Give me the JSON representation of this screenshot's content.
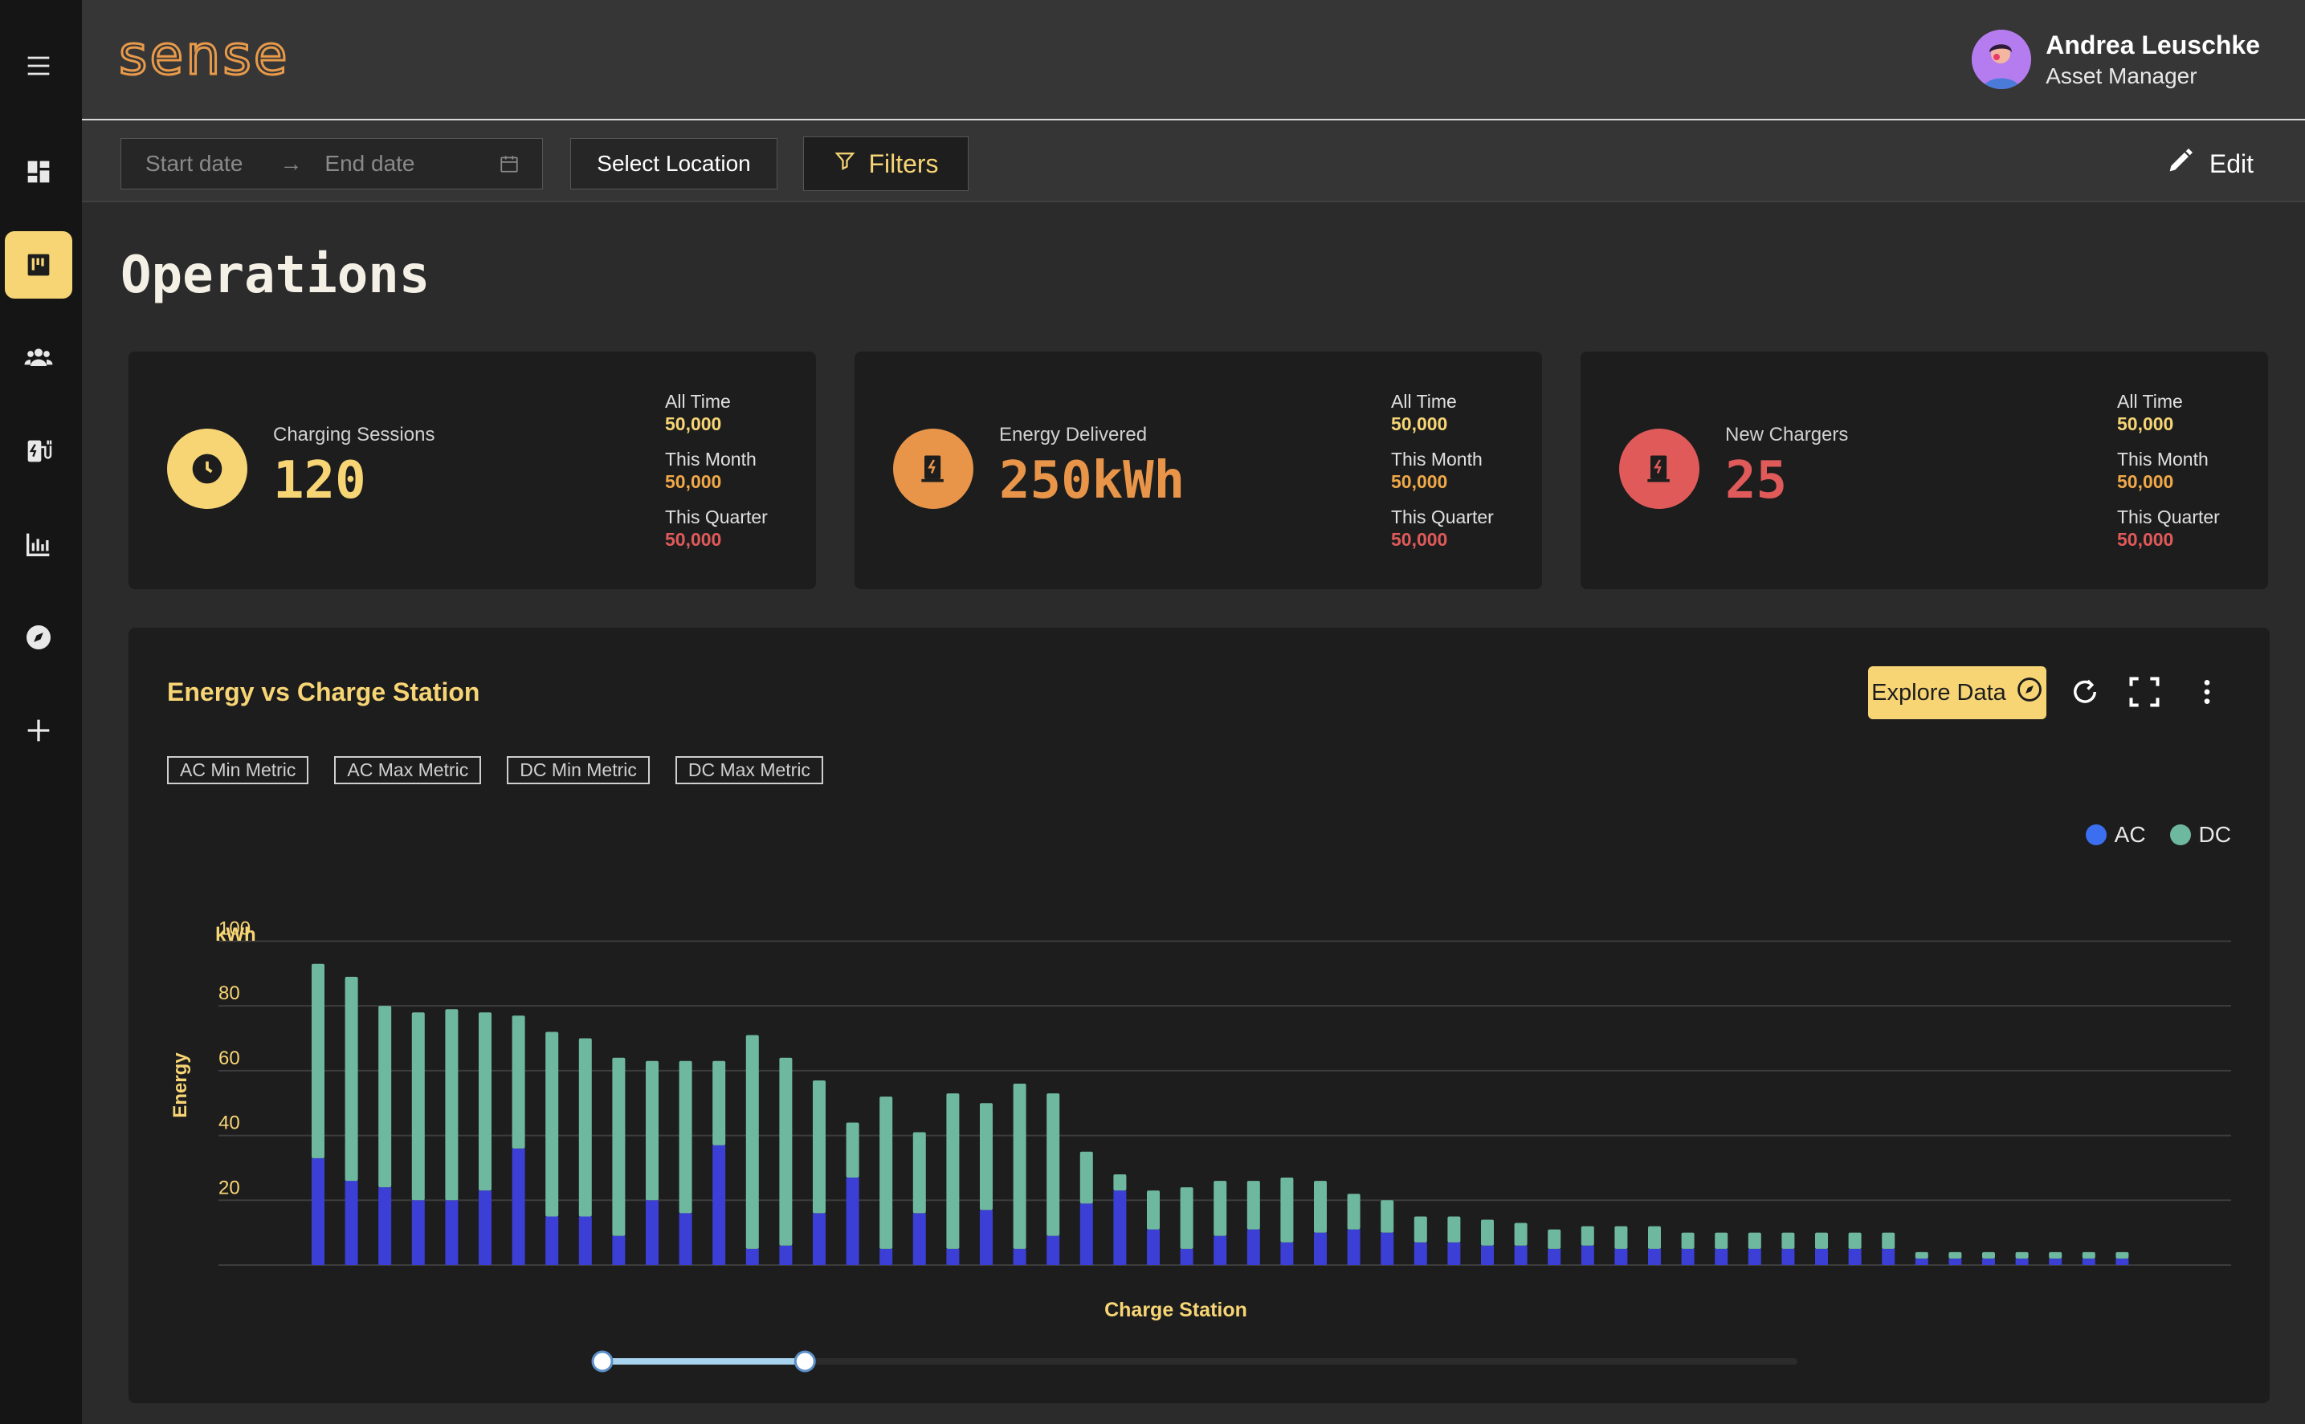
{
  "app": {
    "logo": "sense"
  },
  "user": {
    "name": "Andrea Leuschke",
    "role": "Asset Manager"
  },
  "toolbar": {
    "start_placeholder": "Start date",
    "arrow": "→",
    "end_placeholder": "End date",
    "location_label": "Select Location",
    "filters_label": "Filters",
    "edit_label": "Edit"
  },
  "page": {
    "title": "Operations"
  },
  "cards": [
    {
      "label": "Charging Sessions",
      "value": "120",
      "accent": "#f7d575",
      "stats": [
        {
          "label": "All Time",
          "value": "50,000",
          "color": "#f7d575"
        },
        {
          "label": "This Month",
          "value": "50,000",
          "color": "#f0a848"
        },
        {
          "label": "This Quarter",
          "value": "50,000",
          "color": "#e05a5a"
        }
      ]
    },
    {
      "label": "Energy Delivered",
      "value": "250kWh",
      "accent": "#e8954a",
      "stats": [
        {
          "label": "All Time",
          "value": "50,000",
          "color": "#f7d575"
        },
        {
          "label": "This Month",
          "value": "50,000",
          "color": "#f0a848"
        },
        {
          "label": "This Quarter",
          "value": "50,000",
          "color": "#e05a5a"
        }
      ]
    },
    {
      "label": "New Chargers",
      "value": "25",
      "accent": "#e05a5a",
      "stats": [
        {
          "label": "All Time",
          "value": "50,000",
          "color": "#f7d575"
        },
        {
          "label": "This Month",
          "value": "50,000",
          "color": "#f0a848"
        },
        {
          "label": "This Quarter",
          "value": "50,000",
          "color": "#e05a5a"
        }
      ]
    }
  ],
  "chart_panel": {
    "title": "Energy vs Charge Station",
    "explore_label": "Explore Data",
    "chips": [
      "AC Min Metric",
      "AC Max Metric",
      "DC Min Metric",
      "DC Max Metric"
    ],
    "legend": [
      {
        "name": "AC",
        "color": "#3b6ff0"
      },
      {
        "name": "DC",
        "color": "#6fb8a0"
      }
    ],
    "range_slider": {
      "start": 0.0,
      "end": 0.17
    }
  },
  "chart_data": {
    "type": "bar",
    "stacked": true,
    "xlabel": "Charge Station",
    "ylabel": "Energy",
    "unit_label": "kWh",
    "y_ticks": [
      20,
      40,
      60,
      80,
      100
    ],
    "ylim": [
      0,
      113
    ],
    "grid": true,
    "legend_position": "top-right",
    "series": [
      {
        "name": "AC",
        "color": "#3b3fd6",
        "values": [
          33,
          26,
          24,
          20,
          20,
          23,
          36,
          15,
          15,
          9,
          20,
          16,
          37,
          5,
          6,
          16,
          27,
          5,
          16,
          5,
          17,
          5,
          9,
          19,
          23,
          11,
          5,
          9,
          11,
          7,
          10,
          11,
          10,
          7,
          7,
          6,
          6,
          5,
          6,
          5,
          5,
          5,
          5,
          5,
          5,
          5,
          5,
          5,
          2,
          2,
          2,
          2,
          2,
          2,
          2
        ]
      },
      {
        "name": "DC",
        "color": "#6fb8a0",
        "values": [
          60,
          63,
          56,
          58,
          59,
          55,
          41,
          57,
          55,
          55,
          43,
          47,
          26,
          66,
          58,
          41,
          17,
          47,
          25,
          48,
          33,
          51,
          44,
          16,
          5,
          12,
          19,
          17,
          15,
          20,
          16,
          11,
          10,
          8,
          8,
          8,
          7,
          6,
          6,
          7,
          7,
          5,
          5,
          5,
          5,
          5,
          5,
          5,
          2,
          2,
          2,
          2,
          2,
          2,
          2
        ]
      }
    ]
  }
}
